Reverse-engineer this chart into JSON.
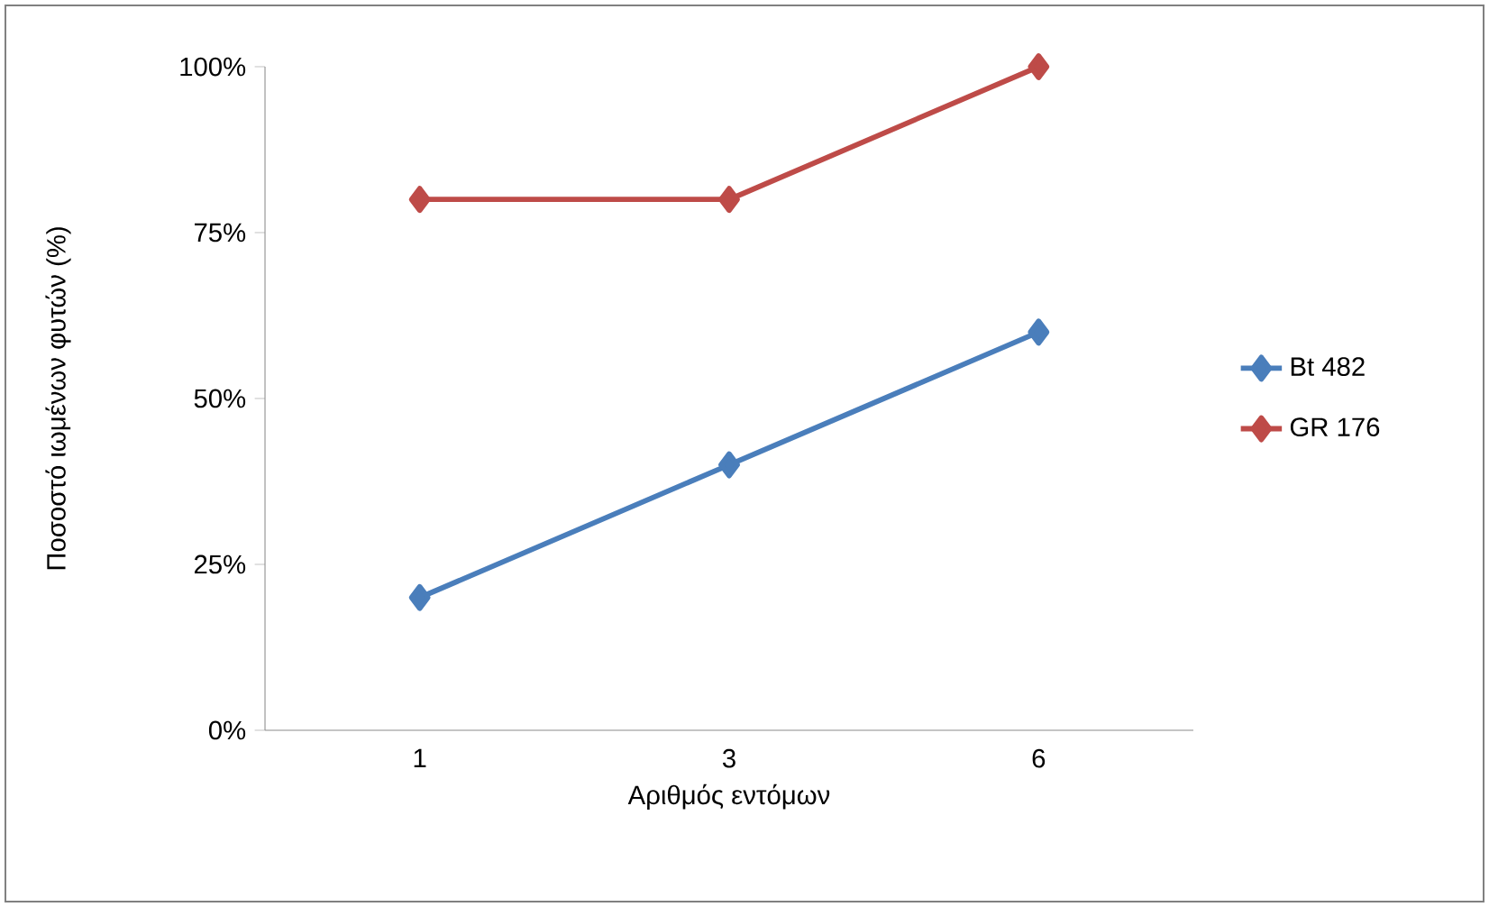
{
  "chart_data": {
    "type": "line",
    "xlabel": "Αριθμός εντόμων",
    "ylabel": "Ποσοστό ιωμένων φυτών (%)",
    "categories": [
      "1",
      "3",
      "6"
    ],
    "series": [
      {
        "name": "Bt 482",
        "color": "#4a7ebb",
        "values": [
          20,
          40,
          60
        ]
      },
      {
        "name": "GR 176",
        "color": "#be4b48",
        "values": [
          80,
          80,
          100
        ]
      }
    ],
    "ylim": [
      0,
      100
    ],
    "yticks": [
      {
        "value": 0,
        "label": "0%"
      },
      {
        "value": 25,
        "label": "25%"
      },
      {
        "value": 50,
        "label": "50%"
      },
      {
        "value": 75,
        "label": "75%"
      },
      {
        "value": 100,
        "label": "100%"
      }
    ],
    "grid": false,
    "legend": "right",
    "marker": "diamond",
    "line_style": "solid"
  }
}
